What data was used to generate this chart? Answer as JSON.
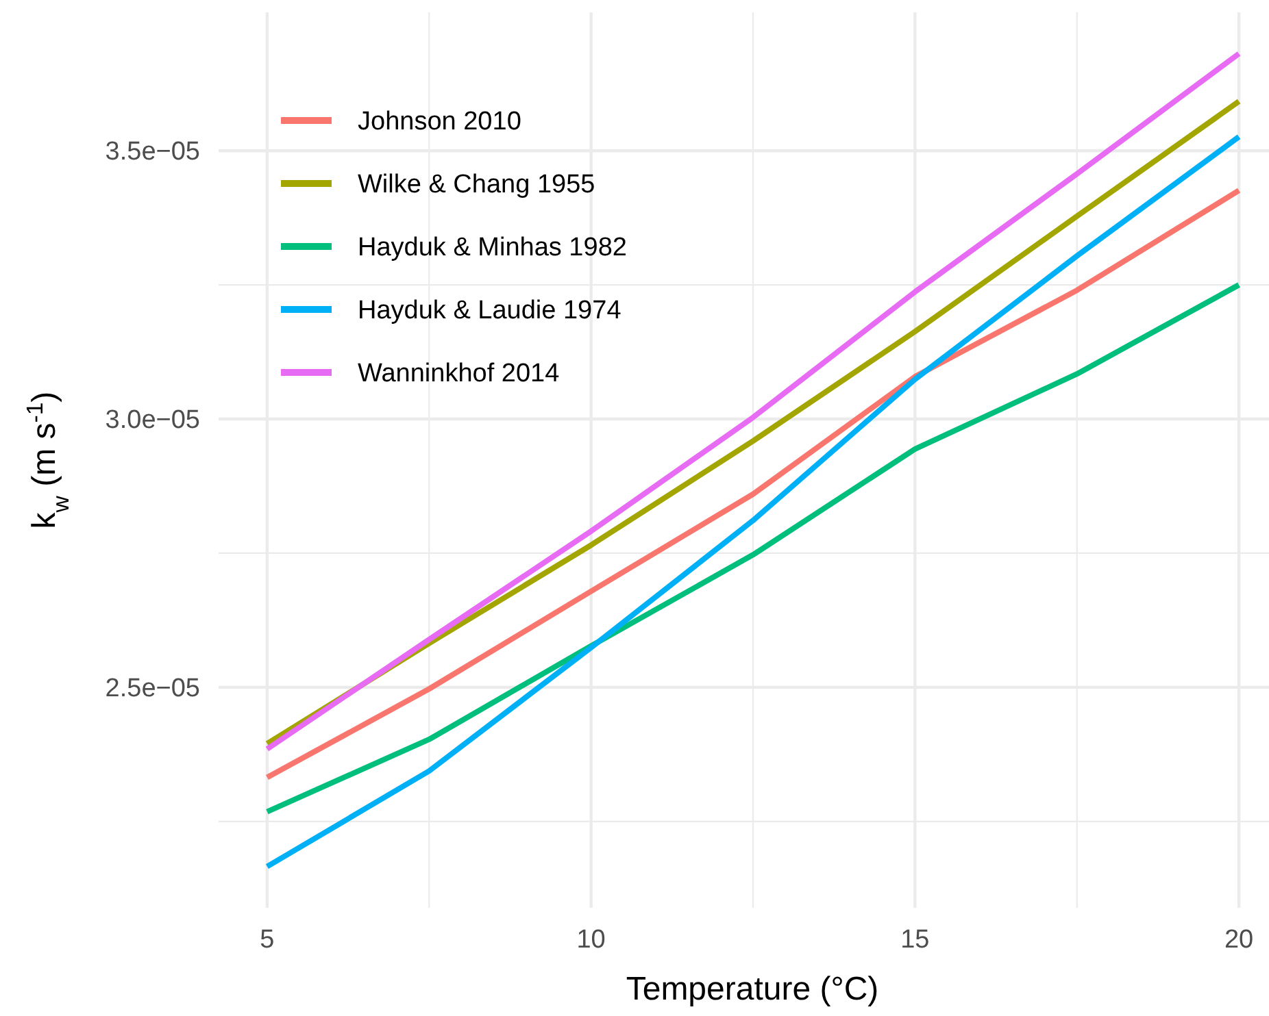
{
  "chart_data": {
    "type": "line",
    "xlabel": "Temperature (°C)",
    "ylabel": "k$_{w}$ (m s$^{-1}$)",
    "x": [
      5,
      7.5,
      10,
      12.5,
      15,
      17.5,
      20
    ],
    "xlim": [
      4.25,
      20.75
    ],
    "xticks": [
      5,
      {
        "value": 7.5,
        "label": null
      },
      10,
      {
        "value": 12.5,
        "label": null
      },
      15,
      {
        "value": 17.5,
        "label": null
      },
      20
    ],
    "ylim": [
      2.089e-05,
      3.758e-05
    ],
    "yticks": [
      {
        "value": 2.25e-05,
        "label": null
      },
      {
        "value": 2.5e-05,
        "label": "2.5e−05"
      },
      {
        "value": 2.75e-05,
        "label": null
      },
      {
        "value": 3e-05,
        "label": "3.0e−05"
      },
      {
        "value": 3.25e-05,
        "label": null
      },
      {
        "value": 3.5e-05,
        "label": "3.5e−05"
      }
    ],
    "grid": true,
    "legend": "top left",
    "line_style": "solid",
    "marker": "none",
    "series": [
      {
        "name": "Johnson 2010",
        "color": "#f8766d",
        "values": [
          2.332e-05,
          2.497e-05,
          2.679e-05,
          2.86e-05,
          3.079e-05,
          3.24e-05,
          3.426e-05
        ]
      },
      {
        "name": "Wilke & Chang 1955",
        "color": "#a3a500",
        "values": [
          2.395e-05,
          2.582e-05,
          2.765e-05,
          2.959e-05,
          3.163e-05,
          3.378e-05,
          3.592e-05
        ]
      },
      {
        "name": "Hayduk & Minhas 1982",
        "color": "#00bf7d",
        "values": [
          2.268e-05,
          2.403e-05,
          2.577e-05,
          2.747e-05,
          2.944e-05,
          3.084e-05,
          3.25e-05
        ]
      },
      {
        "name": "Hayduk & Laudie 1974",
        "color": "#00b0f6",
        "values": [
          2.166e-05,
          2.344e-05,
          2.574e-05,
          2.811e-05,
          3.074e-05,
          3.304e-05,
          3.526e-05
        ]
      },
      {
        "name": "Wanninkhof 2014",
        "color": "#e76bf3",
        "values": [
          2.385e-05,
          2.589e-05,
          2.791e-05,
          3.003e-05,
          3.237e-05,
          3.457e-05,
          3.681e-05
        ]
      }
    ]
  }
}
